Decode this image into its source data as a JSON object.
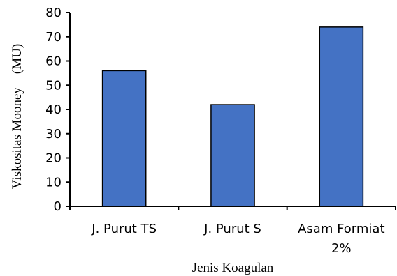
{
  "chart_data": {
    "type": "bar",
    "categories": [
      [
        "J. Purut TS"
      ],
      [
        "J. Purut S"
      ],
      [
        "Asam Formiat",
        "2%"
      ]
    ],
    "values": [
      56,
      42,
      74
    ],
    "title": "",
    "xlabel": "Jenis Koagulan",
    "ylabel": "Viskositas Mooney    (MU)",
    "ylim": [
      0,
      80
    ],
    "yticks": [
      0,
      10,
      20,
      30,
      40,
      50,
      60,
      70,
      80
    ],
    "grid": false,
    "bar_color": "#4472C4",
    "bar_border_color": "#000000"
  }
}
